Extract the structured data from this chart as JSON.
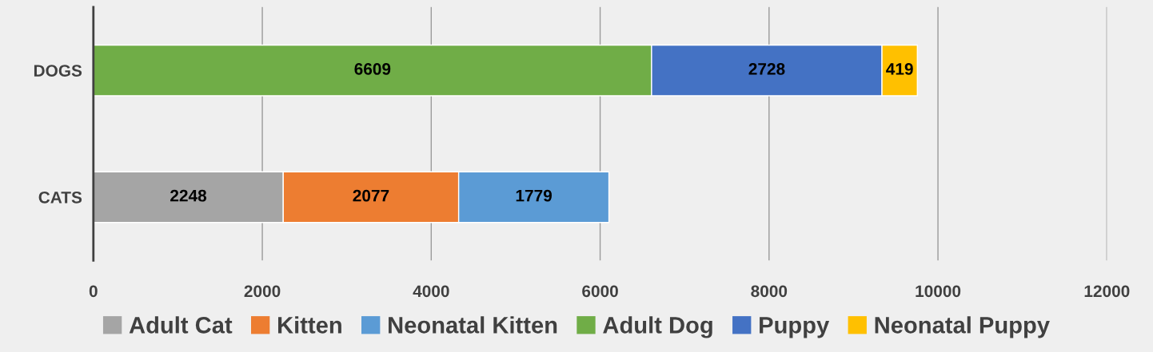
{
  "chart_data": {
    "type": "bar",
    "orientation": "horizontal",
    "stacked": true,
    "categories": [
      "DOGS",
      "CATS"
    ],
    "series": [
      {
        "name": "Adult Cat",
        "color": "#a5a5a5",
        "values": [
          null,
          2248
        ]
      },
      {
        "name": "Kitten",
        "color": "#ed7d31",
        "values": [
          null,
          2077
        ]
      },
      {
        "name": "Neonatal Kitten",
        "color": "#5b9bd5",
        "values": [
          null,
          1779
        ]
      },
      {
        "name": "Adult Dog",
        "color": "#70ad47",
        "values": [
          6609,
          null
        ]
      },
      {
        "name": "Puppy",
        "color": "#4472c4",
        "values": [
          2728,
          null
        ]
      },
      {
        "name": "Neonatal Puppy",
        "color": "#ffc000",
        "values": [
          419,
          null
        ]
      }
    ],
    "xlim": [
      0,
      12000
    ],
    "xticks": [
      0,
      2000,
      4000,
      6000,
      8000,
      10000,
      12000
    ],
    "grid": "x",
    "legend": "bottom",
    "data_labels": true
  }
}
